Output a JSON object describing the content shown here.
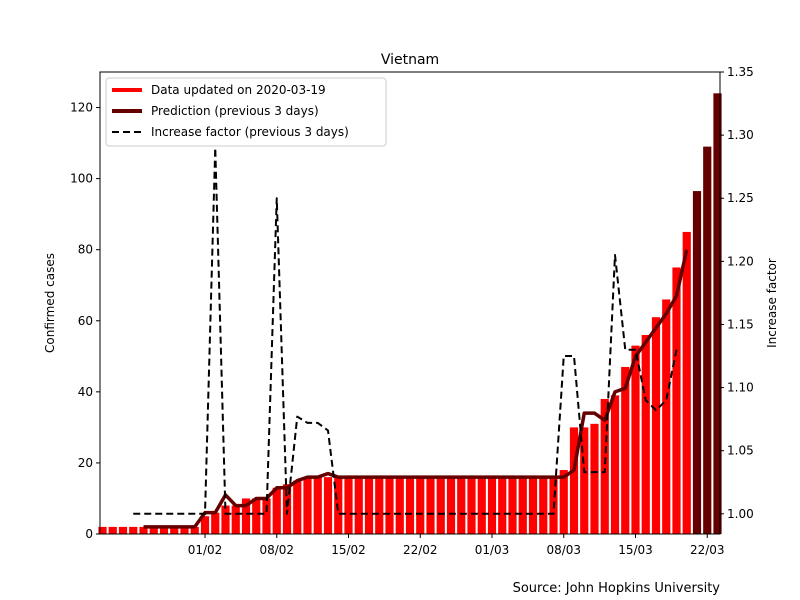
{
  "chart_data": {
    "type": "bar",
    "title": "Vietnam",
    "ylabel": "Confirmed cases",
    "y2label": "Increase factor",
    "ylim": [
      0,
      130
    ],
    "y2lim": [
      0.984,
      1.35
    ],
    "yticks": [
      0,
      20,
      40,
      60,
      80,
      100,
      120
    ],
    "y2ticks": [
      "1.00",
      "1.05",
      "1.10",
      "1.15",
      "1.20",
      "1.25",
      "1.30",
      "1.35"
    ],
    "y2tick_values": [
      1.0,
      1.05,
      1.1,
      1.15,
      1.2,
      1.25,
      1.3,
      1.35
    ],
    "xticks": [
      {
        "label": "01/02",
        "index": 10
      },
      {
        "label": "08/02",
        "index": 17
      },
      {
        "label": "15/02",
        "index": 24
      },
      {
        "label": "22/02",
        "index": 31
      },
      {
        "label": "01/03",
        "index": 38
      },
      {
        "label": "08/03",
        "index": 45
      },
      {
        "label": "15/03",
        "index": 52
      },
      {
        "label": "22/03",
        "index": 59
      }
    ],
    "source": "Source: John Hopkins University",
    "legend": {
      "placement": "top-left",
      "entries": [
        {
          "label": "Data updated on 2020-03-19",
          "color": "#ff0000",
          "style": "solid"
        },
        {
          "label": "Prediction (previous 3 days)",
          "color": "#660000",
          "style": "solid"
        },
        {
          "label": "Increase factor (previous 3 days)",
          "color": "#000000",
          "style": "dashed"
        }
      ]
    },
    "colors": {
      "data": "#ff0000",
      "prediction": "#660000",
      "factor": "#000000"
    },
    "series": [
      {
        "name": "Data updated on 2020-03-19",
        "start_index": 0,
        "values": [
          2,
          2,
          2,
          2,
          2,
          2,
          2,
          2,
          2,
          2,
          5,
          6,
          8,
          8,
          10,
          10,
          10,
          13,
          14,
          15,
          16,
          16,
          16,
          16,
          16,
          16,
          16,
          16,
          16,
          16,
          16,
          16,
          16,
          16,
          16,
          16,
          16,
          16,
          16,
          16,
          16,
          16,
          16,
          16,
          16,
          18,
          30,
          30,
          31,
          38,
          39,
          47,
          53,
          56,
          61,
          66,
          75,
          85
        ]
      },
      {
        "name": "Prediction (previous 3 days)",
        "start_index": 4,
        "values": [
          2,
          2,
          2,
          2,
          2,
          2,
          6,
          6,
          11,
          8,
          8,
          10,
          10,
          13,
          13,
          15,
          16,
          16,
          17,
          16,
          16,
          16,
          16,
          16,
          16,
          16,
          16,
          16,
          16,
          16,
          16,
          16,
          16,
          16,
          16,
          16,
          16,
          16,
          16,
          16,
          16,
          16,
          18,
          34,
          34,
          32,
          40,
          41,
          50,
          54,
          58,
          62,
          67,
          80
        ],
        "forecast_bars": [
          {
            "index": 58,
            "value": 96.5
          },
          {
            "index": 59,
            "value": 109
          },
          {
            "index": 60,
            "value": 124
          }
        ]
      },
      {
        "name": "Increase factor (previous 3 days)",
        "start_index": 3,
        "values": [
          1.0,
          1.0,
          1.0,
          1.0,
          1.0,
          1.0,
          1.0,
          1.0,
          1.29,
          1.0,
          1.0,
          1.0,
          1.0,
          1.0,
          1.25,
          1.0,
          1.077,
          1.072,
          1.072,
          1.066,
          1.0,
          1.0,
          1.0,
          1.0,
          1.0,
          1.0,
          1.0,
          1.0,
          1.0,
          1.0,
          1.0,
          1.0,
          1.0,
          1.0,
          1.0,
          1.0,
          1.0,
          1.0,
          1.0,
          1.0,
          1.0,
          1.0,
          1.125,
          1.125,
          1.033,
          1.033,
          1.033,
          1.205,
          1.13,
          1.13,
          1.09,
          1.082,
          1.09,
          1.13
        ]
      }
    ]
  }
}
